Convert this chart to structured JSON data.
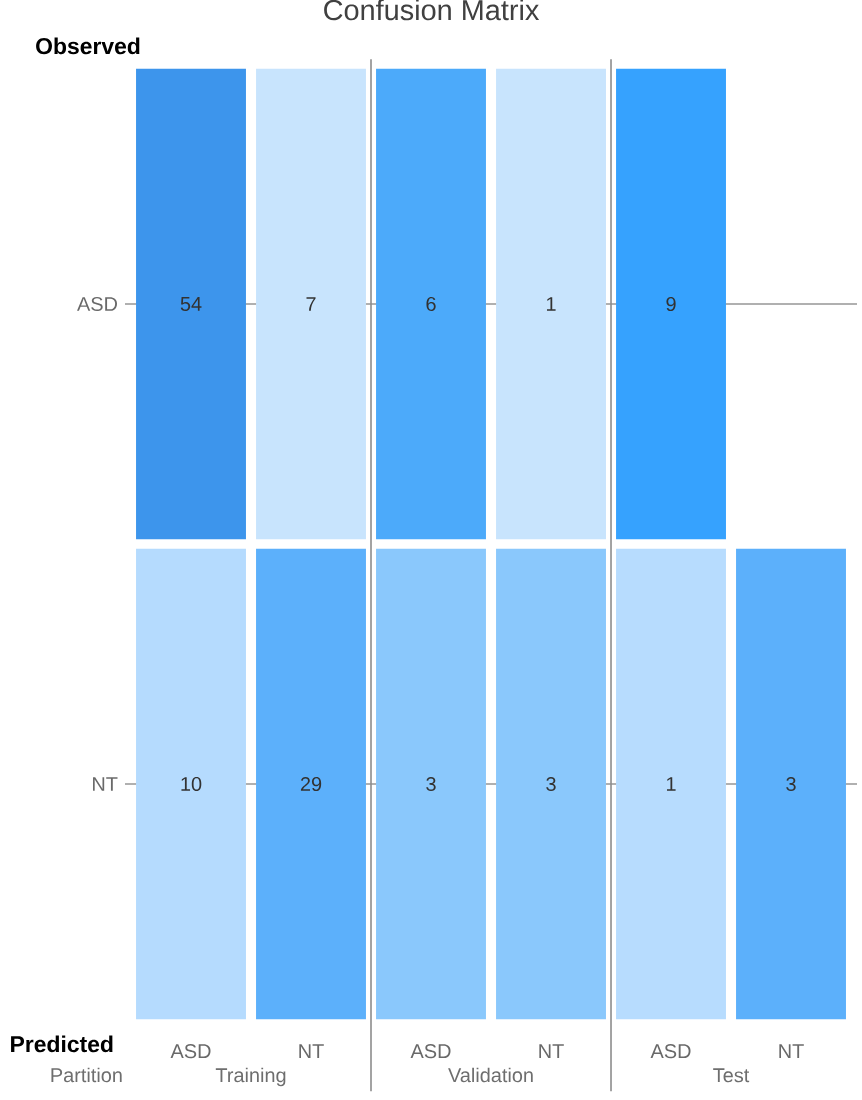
{
  "chart_data": {
    "type": "heatmap",
    "title": "Confusion Matrix",
    "xlabel": "Predicted",
    "ylabel": "Observed",
    "categories": [
      "ASD",
      "NT",
      "ASD",
      "NT",
      "ASD",
      "NT"
    ],
    "y_categories": [
      "ASD",
      "NT"
    ],
    "cells": [
      [
        54,
        7,
        6,
        1,
        9,
        null
      ],
      [
        10,
        29,
        3,
        3,
        1,
        3
      ]
    ],
    "colors": [
      [
        "#3d95ec",
        "#c8e4fd",
        "#4caafa",
        "#c8e4fd",
        "#36a2fe",
        null
      ],
      [
        "#b5dbfe",
        "#5cb0fb",
        "#8ac8fc",
        "#8ac8fc",
        "#b7dcfe",
        "#5cb0fb"
      ]
    ],
    "data_labels": true,
    "grid": "y",
    "annotations": [
      "Partition",
      "Training",
      "Validation",
      "Test"
    ]
  }
}
